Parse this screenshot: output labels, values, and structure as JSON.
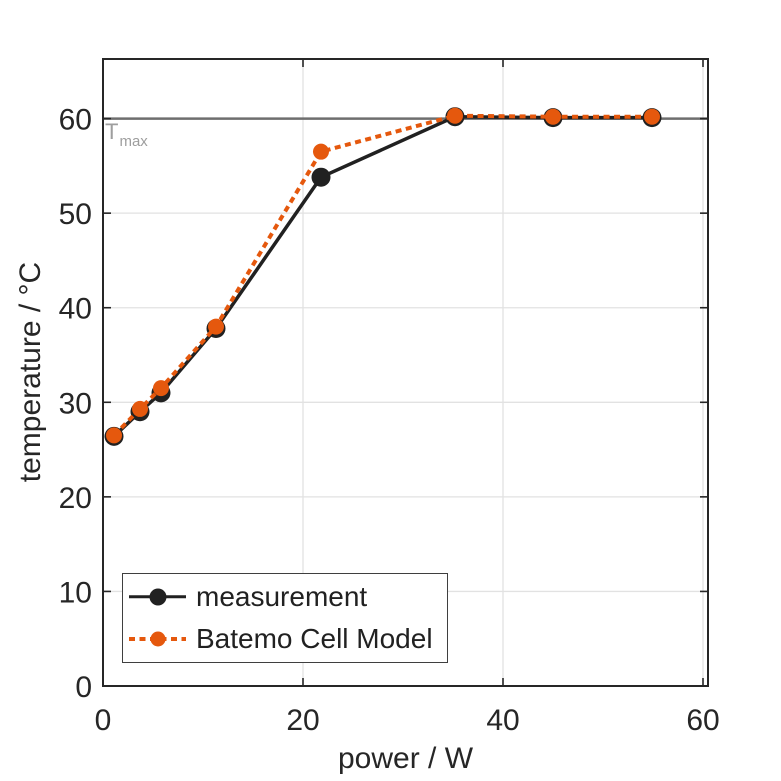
{
  "chart_data": {
    "type": "line",
    "title": "",
    "xlabel": "power / W",
    "ylabel": "temperature / °C",
    "xlim": [
      0,
      60.5
    ],
    "ylim": [
      0,
      66.3
    ],
    "xticks": [
      0,
      20,
      40,
      60
    ],
    "yticks": [
      0,
      10,
      20,
      30,
      40,
      50,
      60
    ],
    "grid": true,
    "legend_position": "bottom-left-inside",
    "colors": {
      "background": "#ffffff",
      "axis": "#262626",
      "grid": "#e2e2e2",
      "measurement": "#212121",
      "model_orange": "#e5580d"
    },
    "series": [
      {
        "name": "measurement",
        "color": "#212121",
        "style": "solid",
        "marker": "circle",
        "points": [
          [
            1.1,
            26.4
          ],
          [
            3.7,
            29.0
          ],
          [
            5.8,
            31.0
          ],
          [
            11.3,
            37.8
          ],
          [
            21.8,
            53.8
          ],
          [
            35.2,
            60.2
          ],
          [
            45.0,
            60.1
          ],
          [
            54.9,
            60.1
          ]
        ]
      },
      {
        "name": "Batemo Cell Model",
        "color": "#e5580d",
        "style": "dotted",
        "marker": "circle",
        "points": [
          [
            1.1,
            26.5
          ],
          [
            3.7,
            29.3
          ],
          [
            5.8,
            31.5
          ],
          [
            11.3,
            38.0
          ],
          [
            21.8,
            56.5
          ],
          [
            35.2,
            60.3
          ],
          [
            45.0,
            60.2
          ],
          [
            54.9,
            60.2
          ]
        ]
      }
    ],
    "annotation": {
      "label_main": "T",
      "label_sub": "max",
      "y": 60,
      "line_color": "#6e6e6e",
      "label_color": "#9e9e9e"
    }
  }
}
